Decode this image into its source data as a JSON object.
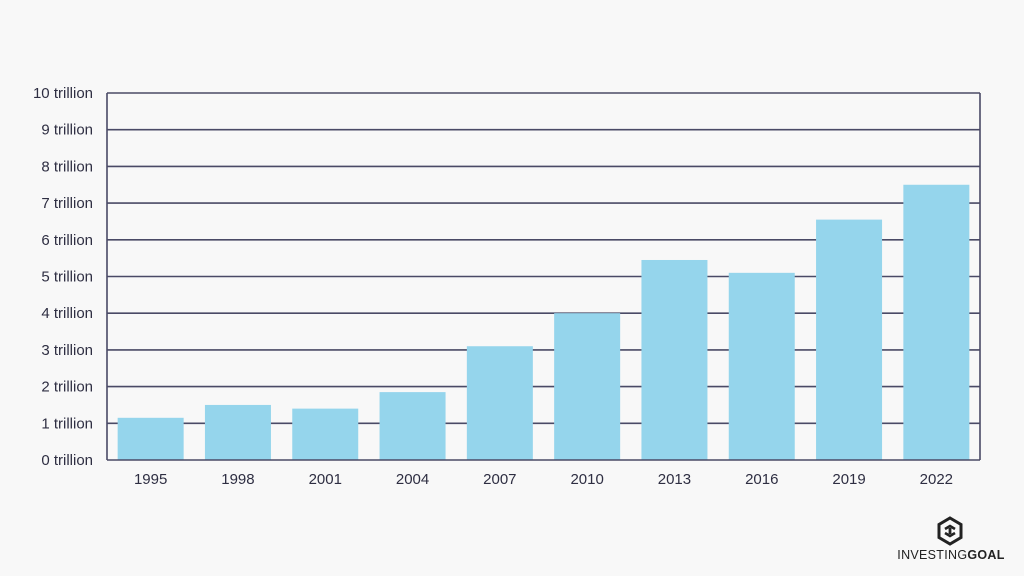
{
  "chart_data": {
    "type": "bar",
    "categories": [
      "1995",
      "1998",
      "2001",
      "2004",
      "2007",
      "2010",
      "2013",
      "2016",
      "2019",
      "2022"
    ],
    "values": [
      1150000000000.0,
      1500000000000.0,
      1400000000000.0,
      1850000000000.0,
      3100000000000.0,
      4000000000000.0,
      5450000000000.0,
      5100000000000.0,
      6550000000000.0,
      7500000000000.0
    ],
    "y_ticks": [
      {
        "value": 0,
        "label": "0 trillion"
      },
      {
        "value": 1000000000000.0,
        "label": "1 trillion"
      },
      {
        "value": 2000000000000.0,
        "label": "2 trillion"
      },
      {
        "value": 3000000000000.0,
        "label": "3 trillion"
      },
      {
        "value": 4000000000000.0,
        "label": "4 trillion"
      },
      {
        "value": 5000000000000.0,
        "label": "5 trillion"
      },
      {
        "value": 6000000000000.0,
        "label": "6 trillion"
      },
      {
        "value": 7000000000000.0,
        "label": "7 trillion"
      },
      {
        "value": 8000000000000.0,
        "label": "8 trillion"
      },
      {
        "value": 9000000000000.0,
        "label": "9 trillion"
      },
      {
        "value": 10000000000000.0,
        "label": "10 trillion"
      }
    ],
    "ylim": [
      0,
      10000000000000.0
    ],
    "grid": true,
    "bar_color": "#95d5ec",
    "grid_color": "#4a4a66"
  },
  "brand": {
    "icon": "investingoal-logo-icon",
    "name_light": "INVESTING",
    "name_bold": "GOAL"
  }
}
